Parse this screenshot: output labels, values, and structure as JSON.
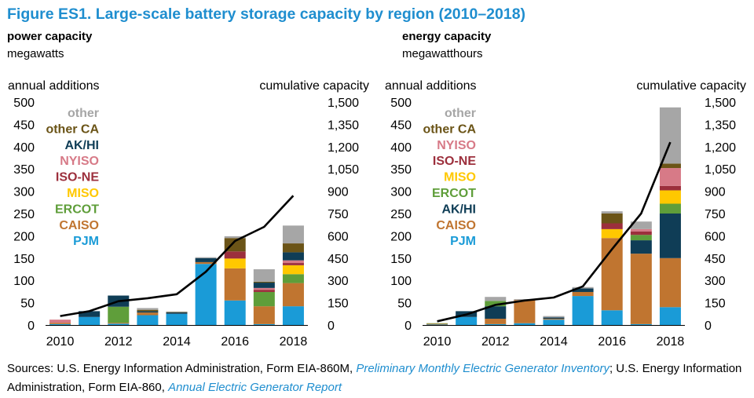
{
  "title": "Figure ES1. Large-scale battery storage capacity by region (2010–2018)",
  "colors": {
    "PJM": "#1a9bd7",
    "CAISO": "#c07530",
    "ERCOT": "#5f9e3a",
    "MISO": "#ffc800",
    "ISO-NE": "#9c2f3c",
    "NYISO": "#d77a87",
    "AK/HI": "#0f3d56",
    "other CA": "#6b5417",
    "other": "#a6a6a6",
    "line": "#000000"
  },
  "sources": {
    "prefix": "Sources: U.S. Energy Information Administration, Form EIA-860M, ",
    "link1": "Preliminary Monthly Electric Generator Inventory",
    "middle": "; U.S. Energy Information Administration, Form EIA-860, ",
    "link2": "Annual Electric Generator Report"
  },
  "chart_data": [
    {
      "type": "bar",
      "stacked": true,
      "heading": "power capacity",
      "units": "megawatts",
      "ylabel_left": "annual additions",
      "ylabel_right": "cumulative capacity",
      "ylim": [
        0,
        500
      ],
      "ylim_right": [
        0,
        1500
      ],
      "yticks": [
        "0",
        "50",
        "100",
        "150",
        "200",
        "250",
        "300",
        "350",
        "400",
        "450",
        "500"
      ],
      "yticks_right": [
        "0",
        "150",
        "300",
        "450",
        "600",
        "750",
        "900",
        "1,050",
        "1,200",
        "1,350",
        "1,500"
      ],
      "categories": [
        "2010",
        "2011",
        "2012",
        "2013",
        "2014",
        "2015",
        "2016",
        "2017",
        "2018"
      ],
      "xtick_labels": [
        "2010",
        "",
        "2012",
        "",
        "2014",
        "",
        "2016",
        "",
        "2018"
      ],
      "legend": [
        "other",
        "other CA",
        "AK/HI",
        "NYISO",
        "ISO-NE",
        "MISO",
        "ERCOT",
        "CAISO",
        "PJM"
      ],
      "series": [
        {
          "name": "PJM",
          "values": [
            2,
            18,
            3,
            22,
            25,
            137,
            55,
            2,
            42
          ]
        },
        {
          "name": "CAISO",
          "values": [
            3,
            0,
            2,
            6,
            0,
            4,
            72,
            40,
            52
          ]
        },
        {
          "name": "ERCOT",
          "values": [
            0,
            0,
            36,
            0,
            0,
            0,
            0,
            32,
            20
          ]
        },
        {
          "name": "MISO",
          "values": [
            0,
            0,
            0,
            0,
            0,
            0,
            22,
            0,
            20
          ]
        },
        {
          "name": "ISO-NE",
          "values": [
            0,
            0,
            0,
            0,
            0,
            0,
            16,
            5,
            5
          ]
        },
        {
          "name": "NYISO",
          "values": [
            7,
            0,
            0,
            0,
            0,
            0,
            0,
            4,
            6
          ]
        },
        {
          "name": "AK/HI",
          "values": [
            0,
            13,
            25,
            3,
            3,
            9,
            0,
            12,
            18
          ]
        },
        {
          "name": "other CA",
          "values": [
            0,
            0,
            0,
            3,
            1,
            0,
            30,
            2,
            20
          ]
        },
        {
          "name": "other",
          "values": [
            0,
            0,
            0,
            4,
            1,
            2,
            4,
            28,
            40
          ]
        }
      ],
      "cumulative": [
        60,
        93,
        160,
        180,
        207,
        358,
        565,
        660,
        870
      ]
    },
    {
      "type": "bar",
      "stacked": true,
      "heading": "energy capacity",
      "units": "megawatthours",
      "ylabel_left": "annual additions",
      "ylabel_right": "cumulative capacity",
      "ylim": [
        0,
        500
      ],
      "ylim_right": [
        0,
        1500
      ],
      "yticks": [
        "0",
        "50",
        "100",
        "150",
        "200",
        "250",
        "300",
        "350",
        "400",
        "450",
        "500"
      ],
      "yticks_right": [
        "0",
        "150",
        "300",
        "450",
        "600",
        "750",
        "900",
        "1,050",
        "1,200",
        "1,350",
        "1,500"
      ],
      "categories": [
        "2010",
        "2011",
        "2012",
        "2013",
        "2014",
        "2015",
        "2016",
        "2017",
        "2018"
      ],
      "xtick_labels": [
        "2010",
        "",
        "2012",
        "",
        "2014",
        "",
        "2016",
        "",
        "2018"
      ],
      "legend": [
        "other",
        "other CA",
        "NYISO",
        "ISO-NE",
        "MISO",
        "ERCOT",
        "AK/HI",
        "CAISO",
        "PJM"
      ],
      "series": [
        {
          "name": "PJM",
          "values": [
            1,
            18,
            2,
            4,
            12,
            65,
            33,
            2,
            40
          ]
        },
        {
          "name": "CAISO",
          "values": [
            2,
            0,
            12,
            52,
            2,
            9,
            162,
            158,
            110
          ]
        },
        {
          "name": "AK/HI",
          "values": [
            0,
            13,
            28,
            0,
            3,
            8,
            0,
            30,
            100
          ]
        },
        {
          "name": "ERCOT",
          "values": [
            1,
            0,
            12,
            0,
            0,
            0,
            0,
            12,
            22
          ]
        },
        {
          "name": "MISO",
          "values": [
            0,
            0,
            0,
            0,
            0,
            0,
            20,
            0,
            30
          ]
        },
        {
          "name": "ISO-NE",
          "values": [
            0,
            0,
            0,
            0,
            0,
            0,
            13,
            8,
            10
          ]
        },
        {
          "name": "NYISO",
          "values": [
            0,
            0,
            0,
            0,
            0,
            0,
            0,
            5,
            40
          ]
        },
        {
          "name": "other CA",
          "values": [
            0,
            0,
            0,
            0,
            0,
            0,
            22,
            0,
            10
          ]
        },
        {
          "name": "other",
          "values": [
            0,
            0,
            9,
            2,
            3,
            3,
            5,
            17,
            126
          ]
        }
      ],
      "cumulative": [
        25,
        70,
        135,
        165,
        185,
        260,
        510,
        750,
        1230
      ]
    }
  ]
}
